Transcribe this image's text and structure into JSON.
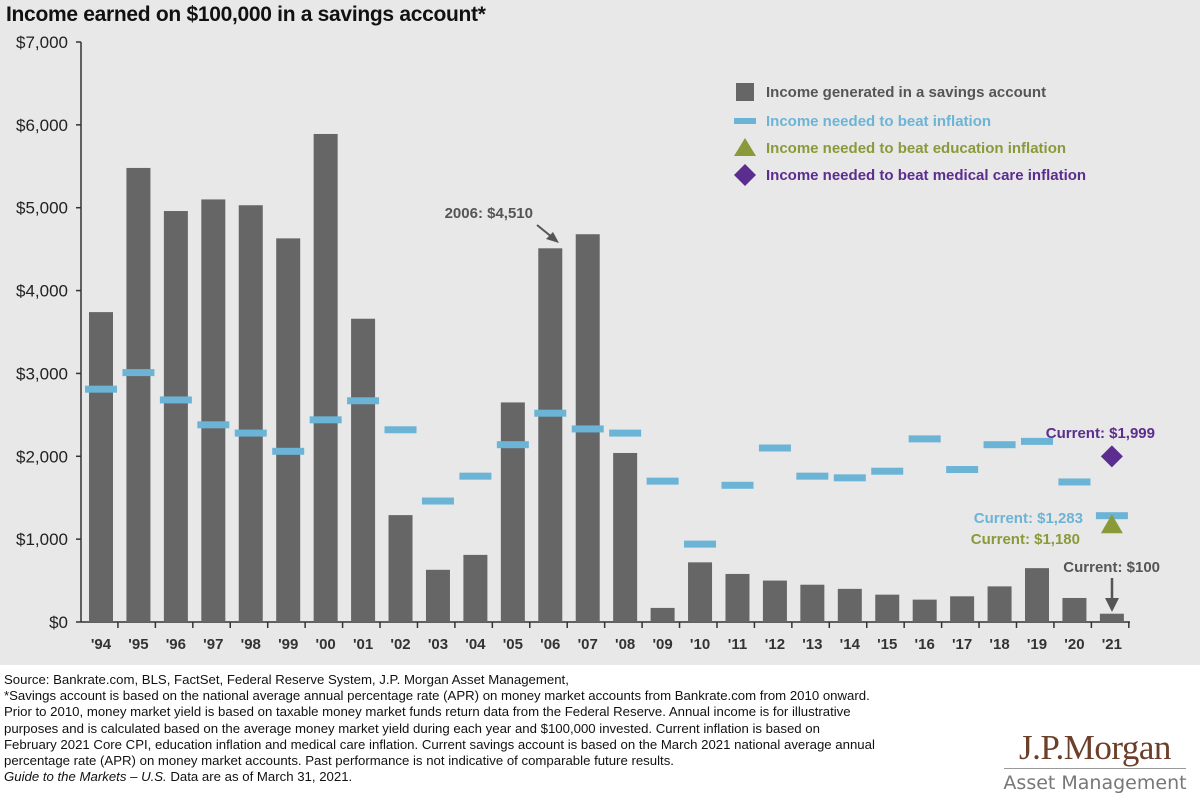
{
  "title": "Income earned on $100,000 in a savings account*",
  "chart_data": {
    "type": "bar",
    "title": "Income earned on $100,000 in a savings account*",
    "categories": [
      "'94",
      "'95",
      "'96",
      "'97",
      "'98",
      "'99",
      "'00",
      "'01",
      "'02",
      "'03",
      "'04",
      "'05",
      "'06",
      "'07",
      "'08",
      "'09",
      "'10",
      "'11",
      "'12",
      "'13",
      "'14",
      "'15",
      "'16",
      "'17",
      "'18",
      "'19",
      "'20",
      "'21"
    ],
    "ylim": [
      0,
      7000
    ],
    "yticks": [
      0,
      1000,
      2000,
      3000,
      4000,
      5000,
      6000,
      7000
    ],
    "ytick_labels": [
      "$0",
      "$1,000",
      "$2,000",
      "$3,000",
      "$4,000",
      "$5,000",
      "$6,000",
      "$7,000"
    ],
    "grid": false,
    "legend_placement": "top-right",
    "series": [
      {
        "name": "Income generated in a savings account",
        "type": "bar",
        "color": "#666666",
        "values": [
          3740,
          5480,
          4960,
          5100,
          5030,
          4630,
          5890,
          3660,
          1290,
          630,
          810,
          2650,
          4510,
          4680,
          2040,
          170,
          720,
          580,
          500,
          450,
          400,
          330,
          270,
          310,
          430,
          650,
          290,
          100
        ]
      },
      {
        "name": "Income needed to beat inflation",
        "type": "dash",
        "color": "#6cb4d6",
        "values": [
          2810,
          3010,
          2680,
          2380,
          2280,
          2060,
          2440,
          2670,
          2320,
          1460,
          1760,
          2140,
          2520,
          2330,
          2280,
          1700,
          940,
          1650,
          2100,
          1760,
          1740,
          1820,
          2210,
          1840,
          2140,
          2180,
          1690,
          1283
        ]
      },
      {
        "name": "Income needed to beat education inflation",
        "type": "triangle",
        "color": "#8a9a3a",
        "points": [
          {
            "x": "'21",
            "y": 1180
          }
        ]
      },
      {
        "name": "Income needed to beat medical care inflation",
        "type": "diamond",
        "color": "#5b2d8e",
        "points": [
          {
            "x": "'21",
            "y": 1999
          }
        ]
      }
    ],
    "annotations": [
      {
        "text": "2006: $4,510",
        "x": "'06",
        "y": 4510,
        "color": "#555555"
      },
      {
        "text": "Current: $1,999",
        "x": "'21",
        "y": 1999,
        "color": "#5b2d8e"
      },
      {
        "text": "Current: $1,283",
        "x": "'21",
        "y": 1283,
        "color": "#6cb4d6"
      },
      {
        "text": "Current: $1,180",
        "x": "'21",
        "y": 1180,
        "color": "#8a9a3a"
      },
      {
        "text": "Current: $100",
        "x": "'21",
        "y": 100,
        "color": "#555555"
      }
    ]
  },
  "footer": {
    "lines": [
      "Source: Bankrate.com, BLS, FactSet, Federal Reserve System, J.P. Morgan Asset Management,",
      "*Savings account is based on the national average annual percentage rate (APR) on money market accounts from Bankrate.com from 2010 onward.",
      "Prior to 2010, money market yield is based on taxable money market funds return data from the Federal Reserve. Annual income is for illustrative",
      "purposes and is calculated based on the average money market yield during each year and $100,000 invested. Current inflation is based on",
      "February 2021 Core CPI, education inflation and medical care inflation. Current savings account is based on the March 2021 national average annual",
      "percentage rate (APR) on money market accounts. Past performance is not indicative of comparable future results."
    ],
    "guide_italic": "Guide to the Markets – U.S.",
    "guide_rest": " Data are as of March 31, 2021."
  },
  "logo": {
    "brand": "J.P.Morgan",
    "sub": "Asset Management"
  }
}
